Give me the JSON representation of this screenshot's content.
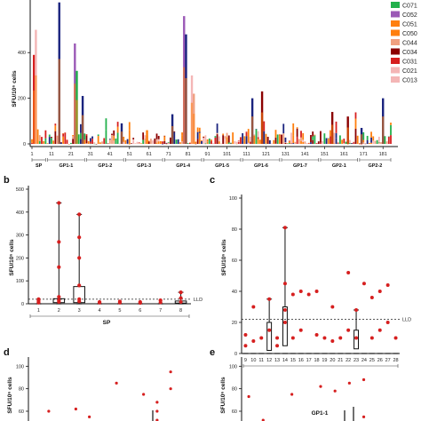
{
  "panels": {
    "b": "b",
    "c": "c",
    "d": "d",
    "e": "e"
  },
  "colors": {
    "red": "#d61f1f",
    "darkred": "#8b0000",
    "blue": "#1a237e",
    "purple": "#9b59b6",
    "green": "#22b14c",
    "orange": "#ff7f0e",
    "salmon": "#f0a080",
    "pink": "#f4b6b6"
  },
  "chart_data": [
    {
      "id": "a",
      "type": "bar",
      "ylabel": "SFU/10⁶ cells",
      "yticks": [
        "0",
        "200",
        "400"
      ],
      "ylim": [
        0,
        650
      ],
      "xticks": [
        "1",
        "11",
        "21",
        "31",
        "41",
        "51",
        "61",
        "71",
        "81",
        "91",
        "101",
        "111",
        "121",
        "131",
        "141",
        "151",
        "161",
        "171",
        "181"
      ],
      "groups": [
        "SP",
        "GP1-1",
        "GP1-2",
        "GP1-3",
        "GP1-4",
        "GP1-5",
        "GP1-6",
        "GP1-7",
        "GP2-1",
        "GP2-2"
      ],
      "legend": [
        "C071",
        "C052",
        "C051",
        "C050",
        "C044",
        "C034",
        "C031",
        "C021",
        "C013"
      ],
      "highlights": [
        {
          "x": 2,
          "value": 390,
          "color": "red"
        },
        {
          "x": 3,
          "value": 500,
          "color": "pink"
        },
        {
          "x": 15,
          "value": 620,
          "color": "blue"
        },
        {
          "x": 23,
          "value": 440,
          "color": "purple"
        },
        {
          "x": 24,
          "value": 320,
          "color": "green"
        },
        {
          "x": 27,
          "value": 210,
          "color": "blue"
        },
        {
          "x": 47,
          "value": 90,
          "color": "blue"
        },
        {
          "x": 60,
          "value": 60,
          "color": "orange"
        },
        {
          "x": 73,
          "value": 130,
          "color": "blue"
        },
        {
          "x": 79,
          "value": 560,
          "color": "purple"
        },
        {
          "x": 80,
          "value": 480,
          "color": "blue"
        },
        {
          "x": 83,
          "value": 300,
          "color": "pink"
        },
        {
          "x": 84,
          "value": 220,
          "color": "salmon"
        },
        {
          "x": 114,
          "value": 200,
          "color": "blue"
        },
        {
          "x": 119,
          "value": 230,
          "color": "darkred"
        },
        {
          "x": 155,
          "value": 140,
          "color": "darkred"
        },
        {
          "x": 163,
          "value": 120,
          "color": "darkred"
        },
        {
          "x": 170,
          "value": 70,
          "color": "blue"
        },
        {
          "x": 181,
          "value": 200,
          "color": "blue"
        }
      ]
    },
    {
      "id": "b",
      "type": "scatter",
      "ylabel": "SFU/10⁶ cells",
      "xlabel": "SP",
      "categories": [
        "1",
        "2",
        "3",
        "4",
        "5",
        "6",
        "7",
        "8"
      ],
      "yticks": [
        "0",
        "100",
        "200",
        "300",
        "400",
        "500"
      ],
      "ylim": [
        0,
        500
      ],
      "reference_line": {
        "label": "LLD",
        "value": 20
      },
      "points": [
        {
          "x": 1,
          "y": 8
        },
        {
          "x": 1,
          "y": 15
        },
        {
          "x": 1,
          "y": 20
        },
        {
          "x": 1,
          "y": 5
        },
        {
          "x": 2,
          "y": 440
        },
        {
          "x": 2,
          "y": 270
        },
        {
          "x": 2,
          "y": 160
        },
        {
          "x": 2,
          "y": 30
        },
        {
          "x": 2,
          "y": 15
        },
        {
          "x": 2,
          "y": 8
        },
        {
          "x": 3,
          "y": 390
        },
        {
          "x": 3,
          "y": 290
        },
        {
          "x": 3,
          "y": 200
        },
        {
          "x": 3,
          "y": 80
        },
        {
          "x": 3,
          "y": 20
        },
        {
          "x": 3,
          "y": 10
        },
        {
          "x": 4,
          "y": 5
        },
        {
          "x": 4,
          "y": 8
        },
        {
          "x": 5,
          "y": 5
        },
        {
          "x": 5,
          "y": 10
        },
        {
          "x": 6,
          "y": 4
        },
        {
          "x": 6,
          "y": 8
        },
        {
          "x": 7,
          "y": 6
        },
        {
          "x": 7,
          "y": 15
        },
        {
          "x": 8,
          "y": 50
        },
        {
          "x": 8,
          "y": 25
        },
        {
          "x": 8,
          "y": 8
        }
      ],
      "boxes": [
        {
          "x": 2,
          "q1": 5,
          "q3": 22,
          "whisker_high": 440
        },
        {
          "x": 3,
          "q1": 5,
          "q3": 75,
          "whisker_high": 390
        },
        {
          "x": 8,
          "q1": 3,
          "q3": 12,
          "whisker_high": 50
        }
      ]
    },
    {
      "id": "c",
      "type": "scatter",
      "ylabel": "SFU/10⁶ cells",
      "xlabel": "GP1-1",
      "categories": [
        "9",
        "10",
        "11",
        "12",
        "13",
        "14",
        "15",
        "16",
        "17",
        "18",
        "19",
        "20",
        "21",
        "22",
        "23",
        "24",
        "25",
        "26",
        "27",
        "28"
      ],
      "yticks": [
        "0",
        "20",
        "40",
        "60",
        "80",
        "100"
      ],
      "ylim": [
        0,
        100
      ],
      "reference_line": {
        "label": "LLD",
        "value": 22
      },
      "points": [
        {
          "x": 9,
          "y": 5
        },
        {
          "x": 9,
          "y": 12
        },
        {
          "x": 10,
          "y": 30
        },
        {
          "x": 10,
          "y": 8
        },
        {
          "x": 11,
          "y": 10
        },
        {
          "x": 12,
          "y": 35
        },
        {
          "x": 12,
          "y": 15
        },
        {
          "x": 13,
          "y": 10
        },
        {
          "x": 13,
          "y": 5
        },
        {
          "x": 14,
          "y": 81
        },
        {
          "x": 14,
          "y": 45
        },
        {
          "x": 14,
          "y": 28
        },
        {
          "x": 14,
          "y": 20
        },
        {
          "x": 15,
          "y": 38
        },
        {
          "x": 15,
          "y": 10
        },
        {
          "x": 16,
          "y": 40
        },
        {
          "x": 16,
          "y": 15
        },
        {
          "x": 17,
          "y": 38
        },
        {
          "x": 18,
          "y": 40
        },
        {
          "x": 18,
          "y": 12
        },
        {
          "x": 19,
          "y": 10
        },
        {
          "x": 20,
          "y": 30
        },
        {
          "x": 20,
          "y": 8
        },
        {
          "x": 21,
          "y": 10
        },
        {
          "x": 22,
          "y": 52
        },
        {
          "x": 22,
          "y": 15
        },
        {
          "x": 23,
          "y": 28
        },
        {
          "x": 23,
          "y": 10
        },
        {
          "x": 24,
          "y": 45
        },
        {
          "x": 25,
          "y": 36
        },
        {
          "x": 25,
          "y": 10
        },
        {
          "x": 26,
          "y": 40
        },
        {
          "x": 26,
          "y": 15
        },
        {
          "x": 27,
          "y": 44
        },
        {
          "x": 27,
          "y": 20
        },
        {
          "x": 28,
          "y": 10
        }
      ],
      "boxes": [
        {
          "x": 12,
          "q1": 2,
          "q3": 20,
          "whisker_high": 35
        },
        {
          "x": 14,
          "q1": 5,
          "q3": 30,
          "whisker_high": 81
        },
        {
          "x": 23,
          "q1": 3,
          "q3": 15,
          "whisker_high": 28
        }
      ]
    },
    {
      "id": "d",
      "type": "scatter",
      "ylabel": "SFU/10⁶ cells",
      "yticks": [
        "100",
        "80",
        "60"
      ],
      "ylim": [
        45,
        105
      ],
      "points": [
        {
          "x": 2,
          "y": 60
        },
        {
          "x": 4,
          "y": 62
        },
        {
          "x": 5,
          "y": 55
        },
        {
          "x": 7,
          "y": 85
        },
        {
          "x": 8,
          "y": 48
        },
        {
          "x": 9,
          "y": 75
        },
        {
          "x": 10,
          "y": 68
        },
        {
          "x": 10,
          "y": 60
        },
        {
          "x": 10,
          "y": 52
        },
        {
          "x": 11,
          "y": 95
        },
        {
          "x": 11,
          "y": 80
        }
      ]
    },
    {
      "id": "e",
      "type": "scatter",
      "ylabel": "SFU/10⁶ cells",
      "yticks": [
        "100",
        "80",
        "60"
      ],
      "ylim": [
        45,
        105
      ],
      "points": [
        {
          "x": 1,
          "y": 73
        },
        {
          "x": 2,
          "y": 52
        },
        {
          "x": 4,
          "y": 75
        },
        {
          "x": 6,
          "y": 82
        },
        {
          "x": 7,
          "y": 78
        },
        {
          "x": 8,
          "y": 85
        },
        {
          "x": 9,
          "y": 88
        },
        {
          "x": 9,
          "y": 55
        },
        {
          "x": 10,
          "y": 50
        }
      ]
    }
  ]
}
